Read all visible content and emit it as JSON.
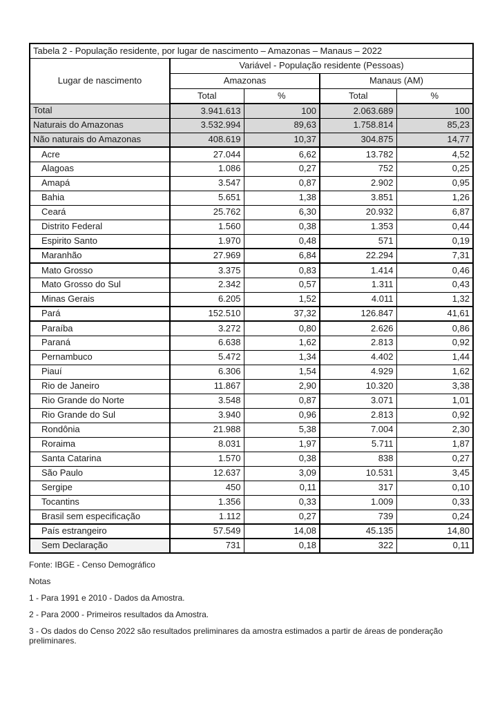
{
  "title": "Tabela 2  - População residente, por lugar de nascimento – Amazonas – Manaus – 2022",
  "table": {
    "header": {
      "place": "Lugar de nascimento",
      "variable": "Variável - População residente (Pessoas)",
      "group_amazonas": "Amazonas",
      "group_manaus": "Manaus (AM)",
      "sub": [
        "Total",
        "%",
        "Total",
        "%"
      ]
    },
    "rows": [
      {
        "label": "Total",
        "cells": [
          "3.941.613",
          "100",
          "2.063.689",
          "100"
        ],
        "shaded": 1,
        "bold": [
          0,
          0,
          0,
          0,
          1
        ]
      },
      {
        "label": "Naturais do Amazonas",
        "cells": [
          "3.532.994",
          "89,63",
          "1.758.814",
          "85,23"
        ],
        "shaded": 1,
        "bold": [
          0,
          0,
          0,
          0,
          1
        ]
      },
      {
        "label": "Não naturais do Amazonas",
        "cells": [
          "408.619",
          "10,37",
          "304.875",
          "14,77"
        ],
        "shaded": 1,
        "bold": [
          0,
          0,
          0,
          0,
          1
        ],
        "sec_end": 1
      },
      {
        "label": "Acre",
        "cells": [
          "27.044",
          "6,62",
          "13.782",
          "4,52"
        ],
        "indent": 1,
        "bold": [
          1,
          1,
          1,
          0,
          0
        ]
      },
      {
        "label": "Alagoas",
        "cells": [
          "1.086",
          "0,27",
          "752",
          "0,25"
        ],
        "indent": 1
      },
      {
        "label": "Amapá",
        "cells": [
          "3.547",
          "0,87",
          "2.902",
          "0,95"
        ],
        "indent": 1
      },
      {
        "label": "Bahia",
        "cells": [
          "5.651",
          "1,38",
          "3.851",
          "1,26"
        ],
        "indent": 1
      },
      {
        "label": "Ceará",
        "cells": [
          "25.762",
          "6,30",
          "20.932",
          "6,87"
        ],
        "indent": 1,
        "bold": [
          0,
          0,
          0,
          1,
          1
        ]
      },
      {
        "label": "Distrito Federal",
        "cells": [
          "1.560",
          "0,38",
          "1.353",
          "0,44"
        ],
        "indent": 1
      },
      {
        "label": "Espirito Santo",
        "cells": [
          "1.970",
          "0,48",
          "571",
          "0,19"
        ],
        "indent": 1
      },
      {
        "label": "Maranhão",
        "cells": [
          "27.969",
          "6,84",
          "22.294",
          "7,31"
        ],
        "indent": 1,
        "bold": [
          1,
          1,
          1,
          1,
          1
        ],
        "emph": 1
      },
      {
        "label": "Mato Grosso",
        "cells": [
          "3.375",
          "0,83",
          "1.414",
          "0,46"
        ],
        "indent": 1
      },
      {
        "label": "Mato Grosso do Sul",
        "cells": [
          "2.342",
          "0,57",
          "1.311",
          "0,43"
        ],
        "indent": 1
      },
      {
        "label": "Minas Gerais",
        "cells": [
          "6.205",
          "1,52",
          "4.011",
          "1,32"
        ],
        "indent": 1
      },
      {
        "label": "Pará",
        "cells": [
          "152.510",
          "37,32",
          "126.847",
          "41,61"
        ],
        "indent": 1,
        "bold": [
          1,
          1,
          1,
          1,
          1
        ],
        "emph": 1
      },
      {
        "label": "Paraíba",
        "cells": [
          "3.272",
          "0,80",
          "2.626",
          "0,86"
        ],
        "indent": 1
      },
      {
        "label": "Paraná",
        "cells": [
          "6.638",
          "1,62",
          "2.813",
          "0,92"
        ],
        "indent": 1
      },
      {
        "label": "Pernambuco",
        "cells": [
          "5.472",
          "1,34",
          "4.402",
          "1,44"
        ],
        "indent": 1
      },
      {
        "label": "Piauí",
        "cells": [
          "6.306",
          "1,54",
          "4.929",
          "1,62"
        ],
        "indent": 1
      },
      {
        "label": "Rio de Janeiro",
        "cells": [
          "11.867",
          "2,90",
          "10.320",
          "3,38"
        ],
        "indent": 1
      },
      {
        "label": "Rio Grande do Norte",
        "cells": [
          "3.548",
          "0,87",
          "3.071",
          "1,01"
        ],
        "indent": 1
      },
      {
        "label": "Rio Grande do Sul",
        "cells": [
          "3.940",
          "0,96",
          "2.813",
          "0,92"
        ],
        "indent": 1
      },
      {
        "label": "Rondônia",
        "cells": [
          "21.988",
          "5,38",
          "7.004",
          "2,30"
        ],
        "indent": 1
      },
      {
        "label": "Roraima",
        "cells": [
          "8.031",
          "1,97",
          "5.711",
          "1,87"
        ],
        "indent": 1
      },
      {
        "label": "Santa Catarina",
        "cells": [
          "1.570",
          "0,38",
          "838",
          "0,27"
        ],
        "indent": 1
      },
      {
        "label": "São Paulo",
        "cells": [
          "12.637",
          "3,09",
          "10.531",
          "3,45"
        ],
        "indent": 1
      },
      {
        "label": "Sergipe",
        "cells": [
          "450",
          "0,11",
          "317",
          "0,10"
        ],
        "indent": 1
      },
      {
        "label": "Tocantins",
        "cells": [
          "1.356",
          "0,33",
          "1.009",
          "0,33"
        ],
        "indent": 1
      },
      {
        "label": "Brasil sem especificação",
        "cells": [
          "1.112",
          "0,27",
          "739",
          "0,24"
        ],
        "indent": 1
      },
      {
        "label": "País estrangeiro",
        "cells": [
          "57.549",
          "14,08",
          "45.135",
          "14,80"
        ],
        "indent": 1,
        "bold": [
          1,
          1,
          1,
          1,
          1
        ],
        "emph": 1
      },
      {
        "label": "Sem Declaração",
        "cells": [
          "731",
          "0,18",
          "322",
          "0,11"
        ],
        "indent": 1,
        "label_bg": "#f2f2f2"
      }
    ]
  },
  "footer": {
    "fonte": "Fonte: IBGE - Censo Demográfico",
    "notas_label": "Notas",
    "notes": [
      "1 - Para 1991 e 2010 - Dados da Amostra.",
      "2 - Para 2000 - Primeiros resultados da Amostra.",
      "3 - Os dados do Censo 2022 são resultados preliminares da amostra estimados a partir de áreas de ponderação preliminares."
    ]
  },
  "colors": {
    "row_shaded": "#d9d9d9",
    "label_light": "#f2f2f2",
    "border": "#000000",
    "text": "#1a1a1a"
  }
}
